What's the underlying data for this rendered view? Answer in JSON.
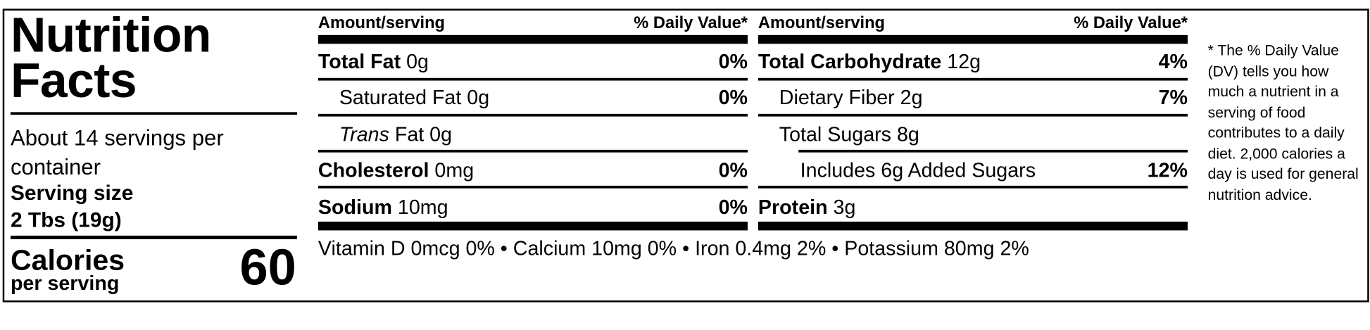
{
  "title": "Nutrition Facts",
  "servings_per_container": "About 14 servings per container",
  "serving_size_label": "Serving size",
  "serving_size_value": "2 Tbs (19g)",
  "calories_label": "Calories",
  "per_serving_label": "per serving",
  "calories_value": "60",
  "header": {
    "amount": "Amount/serving",
    "dv": "% Daily Value*"
  },
  "left_rows": [
    {
      "name": "Total Fat",
      "amount": "0g",
      "dv": "0%",
      "bold": true,
      "indent": 0
    },
    {
      "name": "Saturated Fat",
      "amount": "0g",
      "dv": "0%",
      "bold": false,
      "indent": 1
    },
    {
      "name": "Trans",
      "suffix": "Fat 0g",
      "dv": "",
      "bold": false,
      "indent": 1
    },
    {
      "name": "Cholesterol",
      "amount": "0mg",
      "dv": "0%",
      "bold": true,
      "indent": 0
    },
    {
      "name": "Sodium",
      "amount": "10mg",
      "dv": "0%",
      "bold": true,
      "indent": 0
    }
  ],
  "right_rows": [
    {
      "name": "Total Carbohydrate",
      "amount": "12g",
      "dv": "4%",
      "bold": true,
      "indent": 0
    },
    {
      "name": "Dietary Fiber",
      "amount": "2g",
      "dv": "7%",
      "bold": false,
      "indent": 1
    },
    {
      "name": "Total Sugars",
      "amount": "8g",
      "dv": "",
      "bold": false,
      "indent": 1
    },
    {
      "name": "Includes 6g Added Sugars",
      "amount": "",
      "dv": "12%",
      "bold": false,
      "indent": 2
    },
    {
      "name": "Protein",
      "amount": "3g",
      "dv": "",
      "bold": true,
      "indent": 0
    }
  ],
  "micronutrients": "Vitamin D 0mcg 0% • Calcium 10mg 0% • Iron 0.4mg 2% • Potassium 80mg 2%",
  "footnote": "* The % Daily Value (DV) tells you how much a nutrient in a serving of food contributes to a daily diet. 2,000 calories a day is used for general nutrition advice."
}
